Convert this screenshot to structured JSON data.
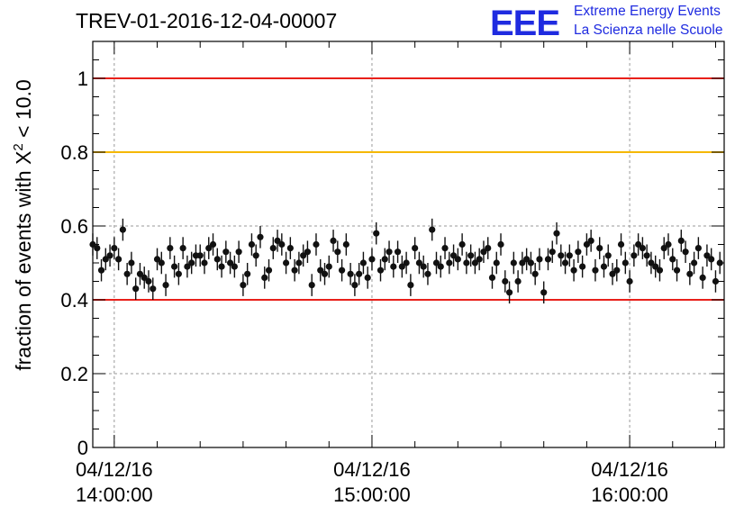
{
  "chart_data": {
    "type": "scatter",
    "title": "TREV-01-2016-12-04-00007",
    "ylabel_prefix": "fraction of events with ",
    "ylabel_symbol": "X",
    "ylabel_sup": "2",
    "ylabel_suffix": " < 10.0",
    "ylim": [
      0,
      1.1
    ],
    "yticks": [
      "0",
      "0.2",
      "0.4",
      "0.6",
      "0.8",
      "1"
    ],
    "yticks_values": [
      0,
      0.2,
      0.4,
      0.6,
      0.8,
      1.0
    ],
    "x_unit": "minutes from 04/12/16 13:55",
    "xlim": [
      0,
      147
    ],
    "xtick_labels": [
      {
        "date": "04/12/16",
        "time": "14:00:00",
        "x": 5
      },
      {
        "date": "04/12/16",
        "time": "15:00:00",
        "x": 65
      },
      {
        "date": "04/12/16",
        "time": "16:00:00",
        "x": 125
      }
    ],
    "grid": true,
    "reference_lines": [
      {
        "y": 1.0,
        "color": "#e8201a"
      },
      {
        "y": 0.8,
        "color": "#f5b800"
      },
      {
        "y": 0.4,
        "color": "#e8201a"
      }
    ],
    "marker_color": "#111111",
    "error": 0.03,
    "x_start": 0,
    "x_step": 1,
    "values": [
      0.55,
      0.54,
      0.48,
      0.51,
      0.52,
      0.54,
      0.51,
      0.59,
      0.47,
      0.5,
      0.43,
      0.47,
      0.46,
      0.45,
      0.43,
      0.51,
      0.5,
      0.44,
      0.54,
      0.49,
      0.47,
      0.54,
      0.49,
      0.5,
      0.52,
      0.52,
      0.5,
      0.54,
      0.55,
      0.51,
      0.49,
      0.53,
      0.5,
      0.49,
      0.53,
      0.44,
      0.47,
      0.55,
      0.52,
      0.57,
      0.46,
      0.48,
      0.54,
      0.56,
      0.55,
      0.5,
      0.54,
      0.48,
      0.5,
      0.52,
      0.53,
      0.44,
      0.55,
      0.48,
      0.47,
      0.49,
      0.56,
      0.53,
      0.48,
      0.55,
      0.47,
      0.44,
      0.47,
      0.5,
      0.46,
      0.51,
      0.58,
      0.48,
      0.51,
      0.53,
      0.49,
      0.53,
      0.49,
      0.5,
      0.44,
      0.54,
      0.5,
      0.49,
      0.47,
      0.59,
      0.5,
      0.49,
      0.54,
      0.5,
      0.52,
      0.51,
      0.55,
      0.5,
      0.52,
      0.5,
      0.51,
      0.53,
      0.54,
      0.46,
      0.5,
      0.55,
      0.45,
      0.42,
      0.5,
      0.45,
      0.5,
      0.51,
      0.5,
      0.47,
      0.51,
      0.42,
      0.51,
      0.53,
      0.58,
      0.52,
      0.5,
      0.52,
      0.48,
      0.53,
      0.49,
      0.55,
      0.56,
      0.48,
      0.54,
      0.49,
      0.52,
      0.47,
      0.48,
      0.55,
      0.5,
      0.45,
      0.52,
      0.55,
      0.54,
      0.52,
      0.5,
      0.49,
      0.48,
      0.54,
      0.55,
      0.51,
      0.48,
      0.56,
      0.53,
      0.47,
      0.5,
      0.54,
      0.46,
      0.52,
      0.51,
      0.45,
      0.5
    ]
  },
  "branding": {
    "logo": "EEE",
    "line1": "Extreme Energy Events",
    "line2": "La Scienza nelle Scuole"
  }
}
